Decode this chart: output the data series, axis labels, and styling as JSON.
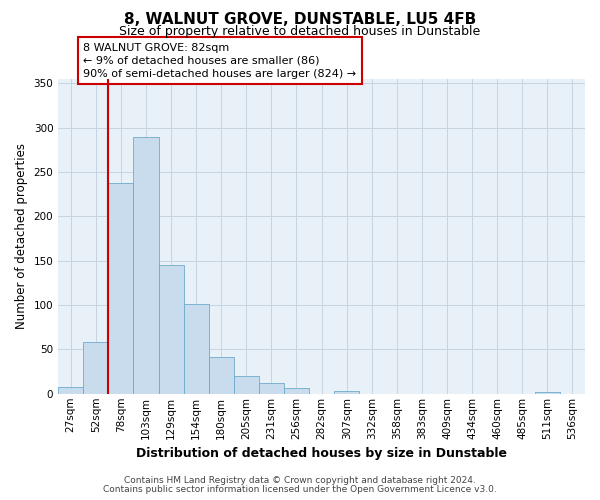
{
  "title": "8, WALNUT GROVE, DUNSTABLE, LU5 4FB",
  "subtitle": "Size of property relative to detached houses in Dunstable",
  "bar_heights": [
    8,
    58,
    238,
    290,
    145,
    101,
    42,
    20,
    12,
    6,
    0,
    3,
    0,
    0,
    0,
    0,
    0,
    0,
    0,
    2,
    0
  ],
  "bin_labels": [
    "27sqm",
    "52sqm",
    "78sqm",
    "103sqm",
    "129sqm",
    "154sqm",
    "180sqm",
    "205sqm",
    "231sqm",
    "256sqm",
    "282sqm",
    "307sqm",
    "332sqm",
    "358sqm",
    "383sqm",
    "409sqm",
    "434sqm",
    "460sqm",
    "485sqm",
    "511sqm",
    "536sqm"
  ],
  "bar_color": "#c8dcee",
  "bar_edge_color": "#6eaacc",
  "marker_line_color": "#cc0000",
  "annotation_text": "8 WALNUT GROVE: 82sqm\n← 9% of detached houses are smaller (86)\n90% of semi-detached houses are larger (824) →",
  "annotation_box_color": "#ffffff",
  "annotation_box_edge": "#cc0000",
  "ylabel": "Number of detached properties",
  "xlabel": "Distribution of detached houses by size in Dunstable",
  "ylim": [
    0,
    355
  ],
  "yticks": [
    0,
    50,
    100,
    150,
    200,
    250,
    300,
    350
  ],
  "footer_line1": "Contains HM Land Registry data © Crown copyright and database right 2024.",
  "footer_line2": "Contains public sector information licensed under the Open Government Licence v3.0.",
  "bg_color": "#ffffff",
  "plot_bg_color": "#e8f0f8",
  "grid_color": "#c8d4e0",
  "title_fontsize": 11,
  "subtitle_fontsize": 9,
  "axis_label_fontsize": 8.5,
  "tick_fontsize": 7.5,
  "annotation_fontsize": 8,
  "footer_fontsize": 6.5
}
